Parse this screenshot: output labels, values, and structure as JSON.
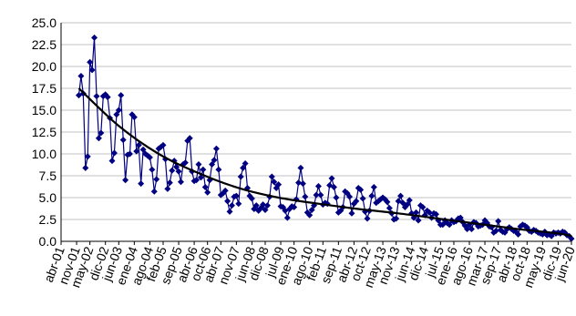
{
  "chart_data": {
    "type": "line",
    "title": "",
    "xlabel": "",
    "ylabel": "",
    "ylim": [
      0,
      25
    ],
    "yticks": [
      "0.0",
      "2.5",
      "5.0",
      "7.5",
      "10.0",
      "12.5",
      "15.0",
      "17.5",
      "20.0",
      "22.5",
      "25.0"
    ],
    "x_tick_labels": [
      "abr-01",
      "nov-01",
      "may-02",
      "dic-02",
      "jun-03",
      "ene-04",
      "ago-04",
      "feb-05",
      "sep-05",
      "abr-06",
      "oct-06",
      "abr-07",
      "nov-07",
      "jun-08",
      "dic-08",
      "jul-09",
      "ene-10",
      "ago-10",
      "feb-11",
      "sep-11",
      "abr-12",
      "oct-12",
      "may-13",
      "nov-13",
      "jun-14",
      "dic-14",
      "jul-15",
      "ene-16",
      "ago-16",
      "mar-17",
      "sep-17",
      "abr-18",
      "oct-18",
      "may-19",
      "dic-19",
      "jun-20"
    ],
    "grid": "horizontal",
    "colors": {
      "series": "#000080",
      "trend": "#000000",
      "grid": "#c0c0c0"
    },
    "series": [
      {
        "marker": "diamond",
        "x": [
          "dic-01",
          "ene-02",
          "feb-02",
          "mar-02",
          "abr-02",
          "may-02",
          "jun-02",
          "jul-02",
          "ago-02",
          "sep-02",
          "oct-02",
          "nov-02",
          "dic-02",
          "ene-03",
          "feb-03",
          "mar-03",
          "abr-03",
          "may-03",
          "jun-03",
          "jul-03",
          "ago-03",
          "sep-03",
          "oct-03",
          "nov-03",
          "dic-03",
          "ene-04",
          "feb-04",
          "mar-04",
          "abr-04",
          "may-04",
          "jun-04",
          "jul-04",
          "ago-04",
          "sep-04",
          "oct-04",
          "nov-04",
          "dic-04",
          "ene-05",
          "feb-05",
          "mar-05",
          "abr-05",
          "may-05",
          "jun-05",
          "jul-05",
          "ago-05",
          "sep-05",
          "oct-05",
          "nov-05",
          "dic-05",
          "ene-06",
          "feb-06",
          "mar-06",
          "abr-06",
          "may-06",
          "jun-06",
          "jul-06",
          "ago-06",
          "sep-06",
          "oct-06",
          "nov-06",
          "dic-06",
          "ene-07",
          "feb-07",
          "mar-07",
          "abr-07",
          "may-07",
          "jun-07",
          "jul-07",
          "ago-07",
          "sep-07",
          "oct-07",
          "nov-07",
          "dic-07",
          "ene-08",
          "feb-08",
          "mar-08",
          "abr-08",
          "may-08",
          "jun-08",
          "jul-08",
          "ago-08",
          "sep-08",
          "oct-08",
          "nov-08",
          "dic-08",
          "ene-09",
          "feb-09",
          "mar-09",
          "abr-09",
          "may-09",
          "jun-09",
          "jul-09",
          "ago-09",
          "sep-09",
          "oct-09",
          "nov-09",
          "dic-09",
          "ene-10",
          "feb-10",
          "mar-10",
          "abr-10",
          "may-10",
          "jun-10",
          "jul-10",
          "ago-10",
          "sep-10",
          "oct-10",
          "nov-10",
          "dic-10",
          "ene-11",
          "feb-11",
          "mar-11",
          "abr-11",
          "may-11",
          "jun-11",
          "jul-11",
          "ago-11",
          "sep-11",
          "oct-11",
          "nov-11",
          "dic-11",
          "ene-12",
          "feb-12",
          "mar-12",
          "abr-12",
          "may-12",
          "jun-12",
          "jul-12",
          "ago-12",
          "sep-12",
          "oct-12",
          "nov-12",
          "dic-12",
          "ene-13",
          "feb-13",
          "mar-13",
          "abr-13",
          "may-13",
          "jun-13",
          "jul-13",
          "ago-13",
          "sep-13",
          "oct-13",
          "nov-13",
          "dic-13",
          "ene-14",
          "feb-14",
          "mar-14",
          "abr-14",
          "may-14",
          "jun-14",
          "jul-14",
          "ago-14",
          "sep-14",
          "oct-14",
          "nov-14",
          "dic-14",
          "ene-15",
          "feb-15",
          "mar-15",
          "abr-15",
          "may-15",
          "jun-15",
          "jul-15",
          "ago-15",
          "sep-15",
          "oct-15",
          "nov-15",
          "dic-15",
          "ene-16",
          "feb-16",
          "mar-16",
          "abr-16",
          "may-16",
          "jun-16",
          "jul-16",
          "ago-16",
          "sep-16",
          "oct-16",
          "nov-16",
          "dic-16",
          "ene-17",
          "feb-17",
          "mar-17",
          "abr-17",
          "may-17",
          "jun-17",
          "jul-17",
          "ago-17",
          "sep-17",
          "oct-17",
          "nov-17",
          "dic-17",
          "ene-18",
          "feb-18",
          "mar-18",
          "abr-18",
          "may-18",
          "jun-18",
          "jul-18",
          "ago-18",
          "sep-18",
          "oct-18",
          "nov-18",
          "dic-18",
          "ene-19",
          "feb-19",
          "mar-19",
          "abr-19",
          "may-19",
          "jun-19",
          "jul-19",
          "ago-19",
          "sep-19",
          "oct-19",
          "nov-19",
          "dic-19",
          "ene-20",
          "feb-20",
          "mar-20",
          "abr-20",
          "may-20",
          "jun-20"
        ],
        "values": [
          16.7,
          18.9,
          16.9,
          8.4,
          9.7,
          20.5,
          19.6,
          23.3,
          16.6,
          11.8,
          12.4,
          16.6,
          16.8,
          16.5,
          14.1,
          9.2,
          10.1,
          14.5,
          15.0,
          16.7,
          11.6,
          7.0,
          9.9,
          10.0,
          14.5,
          14.2,
          10.3,
          11.0,
          6.6,
          10.5,
          10.0,
          9.8,
          9.6,
          8.2,
          5.7,
          7.1,
          10.6,
          10.8,
          11.0,
          9.4,
          6.0,
          6.7,
          8.1,
          9.2,
          8.5,
          8.0,
          6.8,
          8.8,
          9.0,
          11.5,
          11.8,
          8.0,
          6.9,
          7.0,
          8.8,
          7.3,
          8.2,
          6.2,
          5.6,
          7.0,
          8.8,
          9.3,
          10.6,
          8.2,
          5.3,
          5.5,
          5.8,
          4.6,
          3.4,
          4.1,
          5.1,
          5.2,
          4.3,
          7.4,
          8.4,
          8.9,
          6.1,
          5.2,
          4.9,
          3.7,
          4.1,
          3.5,
          3.8,
          4.2,
          3.6,
          4.1,
          5.1,
          7.4,
          6.8,
          6.1,
          6.5,
          4.0,
          3.9,
          3.5,
          2.7,
          3.7,
          4.0,
          3.9,
          4.8,
          6.7,
          8.4,
          6.6,
          5.1,
          3.3,
          3.0,
          3.6,
          4.1,
          5.3,
          6.3,
          5.3,
          4.2,
          4.4,
          4.3,
          6.4,
          7.2,
          6.2,
          5.0,
          3.3,
          3.5,
          3.9,
          5.7,
          5.5,
          5.1,
          3.2,
          4.3,
          4.6,
          6.1,
          5.9,
          4.9,
          3.4,
          2.6,
          3.5,
          5.2,
          6.2,
          4.4,
          4.6,
          4.8,
          5.0,
          4.8,
          4.5,
          3.8,
          3.2,
          2.5,
          2.6,
          4.6,
          5.2,
          4.4,
          3.9,
          4.2,
          4.7,
          3.2,
          2.7,
          3.3,
          2.4,
          4.1,
          3.9,
          3.0,
          3.5,
          3.3,
          2.7,
          3.2,
          3.1,
          2.4,
          1.9,
          1.9,
          2.4,
          2.1,
          1.9,
          2.4,
          2.2,
          2.3,
          2.6,
          2.7,
          2.2,
          1.8,
          1.4,
          1.9,
          1.4,
          2.2,
          2.1,
          1.7,
          1.8,
          1.9,
          2.4,
          2.1,
          1.7,
          1.6,
          1.0,
          1.2,
          2.3,
          1.3,
          1.1,
          1.0,
          1.4,
          1.6,
          1.4,
          1.2,
          1.1,
          0.8,
          1.7,
          1.9,
          1.8,
          1.6,
          1.2,
          1.1,
          1.3,
          1.2,
          1.0,
          0.9,
          0.8,
          1.1,
          0.7,
          0.8,
          0.6,
          1.0,
          0.9,
          1.0,
          0.9,
          1.1,
          1.0,
          0.7,
          0.6,
          0.3
        ]
      }
    ],
    "trend": {
      "x": [
        "dic-01",
        "jun-03",
        "dic-04",
        "jun-06",
        "dic-07",
        "jun-09",
        "dic-10",
        "jun-12",
        "dic-13",
        "jun-15",
        "dic-16",
        "jun-18",
        "dic-19",
        "jun-20"
      ],
      "values": [
        17.5,
        13.2,
        10.0,
        7.8,
        6.1,
        5.0,
        4.3,
        3.7,
        3.2,
        2.6,
        2.0,
        1.4,
        0.9,
        0.6
      ]
    }
  }
}
